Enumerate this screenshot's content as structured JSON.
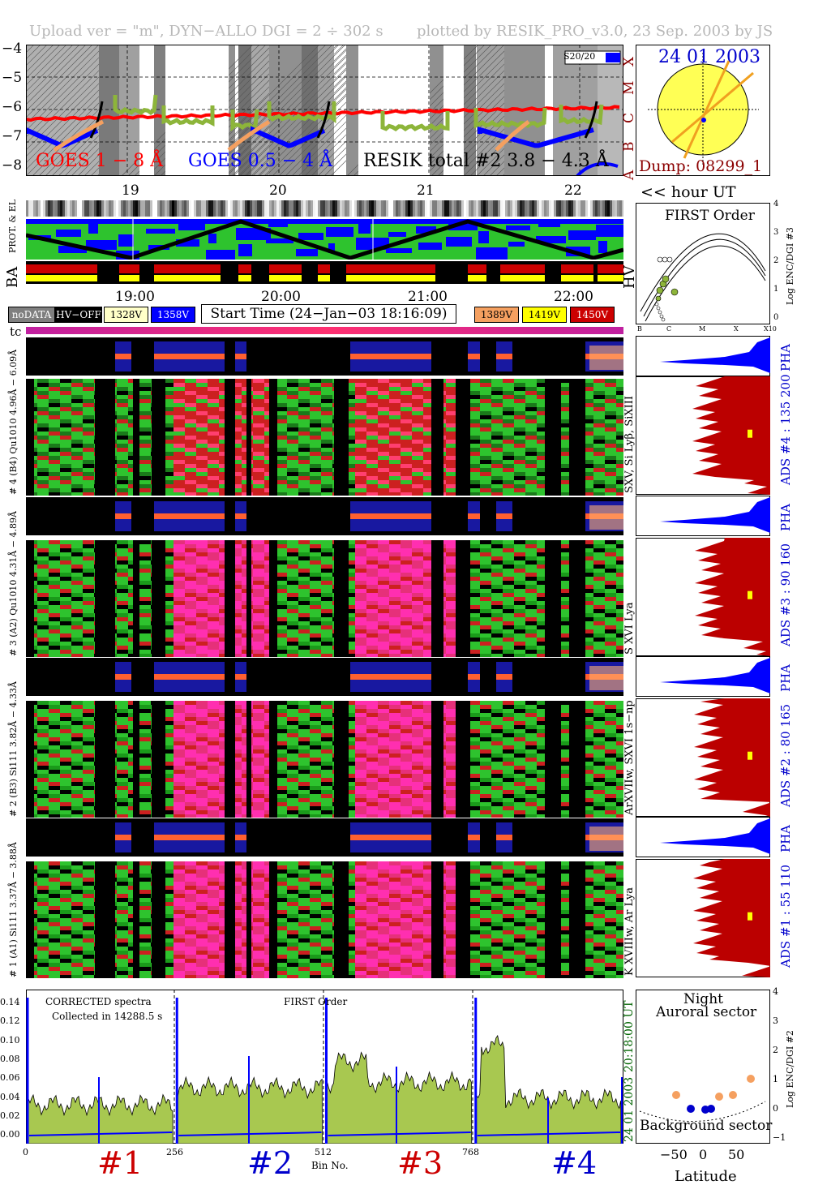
{
  "header": {
    "left": "Upload ver = \"m\", DYN−ALLO DGI =   2 ÷ 302 s",
    "right": "plotted by RESIK_PRO_v3.0, 23 Sep. 2003 by JS"
  },
  "colors": {
    "goes_long": "#ff0000",
    "goes_short": "#0000ff",
    "resik": "#8db53a",
    "orange": "#f5a060",
    "green": "#2ec32e",
    "red": "#cc0000",
    "magenta": "#ff2fb0",
    "yellow": "#ffff00"
  },
  "goes": {
    "y_ticks": [
      "−4",
      "−5",
      "−6",
      "−7",
      "−8"
    ],
    "flare_classes": [
      "X",
      "M",
      "C",
      "B",
      "A"
    ],
    "label_long": "GOES 1 − 8 Å",
    "label_short": "GOES 0.5 − 4 Å",
    "label_resik": "RESIK total #2  3.8 − 4.3 Å",
    "badge": "S20/20",
    "hour_ticks": [
      "19",
      "20",
      "21",
      "22"
    ],
    "hour_unit": "<< hour UT"
  },
  "sun": {
    "date": "24 01 2003",
    "dump": "Dump: 08299_1"
  },
  "status": {
    "prot_el_label": "PROT. & EL",
    "ba_label": "BA",
    "hv_label": "HV",
    "time_ticks": [
      "19:00",
      "20:00",
      "21:00",
      "22:00"
    ],
    "legend": {
      "nodata": "noDATA",
      "hvoff": "HV−OFF",
      "v1": "1328V",
      "v2": "1358V",
      "v3": "1389V",
      "v4": "1419V",
      "v5": "1450V"
    },
    "start_time": "Start Time (24−Jan−03 18:16:09)",
    "tc": "tc"
  },
  "first_order": {
    "title": "FIRST Order",
    "ylabel": "Log ENC/DGI #3",
    "y_ticks": [
      "4",
      "3",
      "2",
      "1",
      "0"
    ],
    "x_ticks": [
      "B",
      "C",
      "M",
      "X",
      "X10"
    ]
  },
  "channels": [
    {
      "left_label": "# 4 (B4) Qu1010 4.96Å − 6.09Å",
      "lines": "SXV, Si Lyβ, SiXIII",
      "ads": "ADS #4 :   135 200",
      "pha": "PHA"
    },
    {
      "left_label": "# 3 (A2) Qu1010  4.31Å − 4.89Å",
      "lines": "S XVI Lya",
      "ads": "ADS #3 :   90 160",
      "pha": "PHA"
    },
    {
      "left_label": "# 2 (B3) Si111  3.82Å − 4.33Å",
      "lines": "ArXVIIw, SXVI 1s−np",
      "ads": "ADS #2 :   80 165",
      "pha": "PHA"
    },
    {
      "left_label": "# 1 (A1) Si111  3.37Å − 3.88Å",
      "lines": "K XVIIIw, Ar Lya",
      "ads": "ADS #1 :   55 110",
      "pha": "PHA"
    }
  ],
  "spectrum": {
    "note1": "CORRECTED spectra",
    "note2": "Collected in 14288.5 s",
    "note3": "FIRST Order",
    "y_ticks": [
      "0.14",
      "0.12",
      "0.10",
      "0.08",
      "0.06",
      "0.04",
      "0.02",
      "0.00"
    ],
    "x_ticks": [
      "0",
      "256",
      "512",
      "768"
    ],
    "xlabel": "Bin No.",
    "channel_marks": [
      "#1",
      "#2",
      "#3",
      "#4"
    ],
    "right_time": "20:18:00 UT",
    "right_date": "24 01 2003"
  },
  "latitude": {
    "label_top1": "Night",
    "label_top2": "Auroral sector",
    "label_bottom": "Background sector",
    "xlabel": "Latitude",
    "x_ticks": [
      "−50",
      "0",
      "50"
    ],
    "y_ticks": [
      "4",
      "3",
      "2",
      "1",
      "0",
      "−1"
    ],
    "ylabel": "Log ENC/DGI #2"
  },
  "chart_data": [
    {
      "type": "line",
      "title": "",
      "ylabel": "",
      "ylim": [
        -8,
        -4
      ],
      "x_ticks": [
        "19",
        "20",
        "21",
        "22"
      ],
      "series": [
        {
          "name": "GOES 1 − 8 Å",
          "values": [
            -6.3,
            -6.25,
            -6.2,
            -6.2,
            -6.2,
            -6.15,
            -6.2,
            -6.2,
            -6.2,
            -6.15,
            -6.2,
            -6.2,
            -6.15,
            -6.1,
            -6.0
          ]
        },
        {
          "name": "RESIK total #2  3.8 − 4.3 Å",
          "values": [
            -6.0,
            -6.05,
            -6.1,
            -6.1,
            -6.2,
            -6.2,
            -6.1,
            -6.2,
            -6.2,
            -6.3,
            -6.2,
            -6.1,
            -6.1,
            -6.05,
            -6.0
          ]
        }
      ]
    },
    {
      "type": "line",
      "ylim": [
        0,
        0.14
      ],
      "xlim": [
        0,
        1024
      ],
      "xlabel": "Bin No.",
      "x_ticks": [
        0,
        256,
        512,
        768
      ],
      "y_ticks": [
        0.0,
        0.02,
        0.04,
        0.06,
        0.08,
        0.1,
        0.12,
        0.14
      ],
      "series": [
        {
          "name": "ch1",
          "bins": [
            0,
            256
          ],
          "level": 0.034
        },
        {
          "name": "ch2",
          "bins": [
            256,
            512
          ],
          "level": 0.05
        },
        {
          "name": "ch3",
          "bins": [
            512,
            768
          ],
          "level": 0.055
        },
        {
          "name": "ch4",
          "bins": [
            768,
            1024
          ],
          "level": 0.04
        }
      ]
    },
    {
      "type": "scatter",
      "xlabel": "Latitude",
      "ylabel": "Log ENC/DGI #2",
      "xlim": [
        -80,
        80
      ],
      "ylim": [
        -1,
        4
      ],
      "series": [
        {
          "name": "orange",
          "x": [
            -40,
            30,
            45,
            70
          ],
          "y": [
            0.6,
            0.5,
            0.5,
            1.0
          ]
        },
        {
          "name": "blue",
          "x": [
            -20,
            -5,
            5,
            20
          ],
          "y": [
            0.1,
            0.05,
            0.1,
            0.3
          ]
        }
      ]
    }
  ]
}
